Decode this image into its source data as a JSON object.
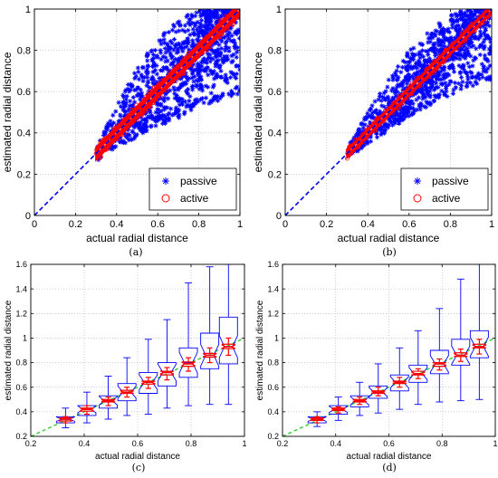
{
  "panels": [
    {
      "caption": "(a)"
    },
    {
      "caption": "(b)"
    },
    {
      "caption": "(c)"
    },
    {
      "caption": "(d)"
    }
  ],
  "chart_data": [
    {
      "type": "scatter",
      "title": "",
      "xlabel": "actual radial distance",
      "ylabel": "estimated radial distance",
      "xlim": [
        0,
        1
      ],
      "ylim": [
        0,
        1
      ],
      "xticks": [
        "0",
        "0.2",
        "0.4",
        "0.6",
        "0.8",
        "1"
      ],
      "yticks": [
        "0",
        "0.2",
        "0.4",
        "0.6",
        "0.8",
        "1"
      ],
      "grid": true,
      "legend": "bottom-right",
      "reference_line": {
        "x": [
          0,
          1
        ],
        "y": [
          0,
          1
        ],
        "style": "dashed",
        "color": "#0000ee"
      },
      "series": [
        {
          "name": "passive",
          "marker": "*",
          "color": "#0000ff",
          "x_range": [
            0.3,
            1.0
          ],
          "lower_edge": [
            [
              0.3,
              0.26
            ],
            [
              0.4,
              0.33
            ],
            [
              0.5,
              0.38
            ],
            [
              0.6,
              0.43
            ],
            [
              0.7,
              0.47
            ],
            [
              0.8,
              0.52
            ],
            [
              0.9,
              0.55
            ],
            [
              1.0,
              0.58
            ]
          ],
          "upper_edge": [
            [
              0.3,
              0.34
            ],
            [
              0.4,
              0.53
            ],
            [
              0.5,
              0.72
            ],
            [
              0.6,
              0.85
            ],
            [
              0.7,
              0.95
            ],
            [
              0.8,
              1.0
            ],
            [
              0.9,
              1.0
            ],
            [
              1.0,
              1.0
            ]
          ]
        },
        {
          "name": "active",
          "marker": "o",
          "color": "#ff0000",
          "x_range": [
            0.3,
            1.0
          ],
          "band_halfwidth": 0.03
        }
      ]
    },
    {
      "type": "scatter",
      "title": "",
      "xlabel": "actual radial distance",
      "ylabel": "estimated radial distance",
      "xlim": [
        0,
        1
      ],
      "ylim": [
        0,
        1
      ],
      "xticks": [
        "0",
        "0.2",
        "0.4",
        "0.6",
        "0.8",
        "1"
      ],
      "yticks": [
        "0",
        "0.2",
        "0.4",
        "0.6",
        "0.8",
        "1"
      ],
      "grid": true,
      "legend": "bottom-right",
      "reference_line": {
        "x": [
          0,
          1
        ],
        "y": [
          0,
          1
        ],
        "style": "dashed",
        "color": "#0000ee"
      },
      "series": [
        {
          "name": "passive",
          "marker": "*",
          "color": "#0000ff",
          "x_range": [
            0.3,
            1.0
          ],
          "lower_edge": [
            [
              0.3,
              0.27
            ],
            [
              0.4,
              0.35
            ],
            [
              0.5,
              0.41
            ],
            [
              0.6,
              0.48
            ],
            [
              0.7,
              0.53
            ],
            [
              0.8,
              0.58
            ],
            [
              0.9,
              0.62
            ],
            [
              1.0,
              0.66
            ]
          ],
          "upper_edge": [
            [
              0.3,
              0.33
            ],
            [
              0.4,
              0.5
            ],
            [
              0.5,
              0.66
            ],
            [
              0.6,
              0.8
            ],
            [
              0.7,
              0.9
            ],
            [
              0.8,
              0.98
            ],
            [
              0.9,
              1.0
            ],
            [
              1.0,
              1.0
            ]
          ]
        },
        {
          "name": "active",
          "marker": "o",
          "color": "#ff0000",
          "x_range": [
            0.3,
            1.0
          ],
          "band_halfwidth": 0.02
        }
      ]
    },
    {
      "type": "box",
      "title": "",
      "xlabel": "actual radial distance",
      "ylabel": "estimated radial distance",
      "xlim": [
        0.2,
        1
      ],
      "ylim": [
        0.2,
        1.6
      ],
      "xticks": [
        "0.2",
        "0.4",
        "0.6",
        "0.8",
        "1"
      ],
      "yticks": [
        "0.2",
        "0.4",
        "0.6",
        "0.8",
        "1",
        "1.2",
        "1.4",
        "1.6"
      ],
      "grid": true,
      "reference_line": {
        "x": [
          0.2,
          1
        ],
        "y": [
          0.2,
          1
        ],
        "style": "dashed",
        "color": "#33cc33"
      },
      "series": [
        {
          "name": "passive",
          "color": "#0000ff",
          "x": [
            0.33,
            0.41,
            0.49,
            0.56,
            0.64,
            0.71,
            0.79,
            0.87,
            0.94
          ],
          "whisker_low": [
            0.27,
            0.31,
            0.34,
            0.37,
            0.38,
            0.43,
            0.45,
            0.46,
            0.46
          ],
          "q1": [
            0.31,
            0.37,
            0.43,
            0.49,
            0.55,
            0.61,
            0.68,
            0.75,
            0.79
          ],
          "median": [
            0.34,
            0.42,
            0.49,
            0.56,
            0.64,
            0.72,
            0.8,
            0.86,
            0.93
          ],
          "q3": [
            0.36,
            0.45,
            0.53,
            0.63,
            0.72,
            0.8,
            0.92,
            1.04,
            1.17
          ],
          "whisker_high": [
            0.43,
            0.56,
            0.69,
            0.84,
            0.99,
            1.15,
            1.45,
            1.58,
            1.6
          ]
        },
        {
          "name": "active",
          "color": "#ff0000",
          "x": [
            0.33,
            0.41,
            0.49,
            0.56,
            0.64,
            0.71,
            0.79,
            0.87,
            0.94
          ],
          "whisker_low": [
            0.31,
            0.38,
            0.45,
            0.52,
            0.59,
            0.66,
            0.73,
            0.8,
            0.86
          ],
          "q1": [
            0.325,
            0.405,
            0.48,
            0.55,
            0.625,
            0.7,
            0.77,
            0.845,
            0.915
          ],
          "median": [
            0.34,
            0.42,
            0.49,
            0.56,
            0.64,
            0.72,
            0.79,
            0.86,
            0.93
          ],
          "q3": [
            0.35,
            0.43,
            0.5,
            0.575,
            0.65,
            0.73,
            0.805,
            0.875,
            0.95
          ],
          "whisker_high": [
            0.36,
            0.45,
            0.52,
            0.6,
            0.68,
            0.76,
            0.84,
            0.92,
            1.0
          ]
        }
      ]
    },
    {
      "type": "box",
      "title": "",
      "xlabel": "actual radial distance",
      "ylabel": "estimated radial distance",
      "xlim": [
        0.2,
        1
      ],
      "ylim": [
        0.2,
        1.6
      ],
      "xticks": [
        "0.2",
        "0.4",
        "0.6",
        "0.8",
        "1"
      ],
      "yticks": [
        "0.2",
        "0.4",
        "0.6",
        "0.8",
        "1",
        "1.2",
        "1.4",
        "1.6"
      ],
      "grid": true,
      "reference_line": {
        "x": [
          0.2,
          1
        ],
        "y": [
          0.2,
          1
        ],
        "style": "dashed",
        "color": "#33cc33"
      },
      "series": [
        {
          "name": "passive",
          "color": "#0000ff",
          "x": [
            0.33,
            0.41,
            0.49,
            0.56,
            0.64,
            0.71,
            0.79,
            0.87,
            0.94
          ],
          "whisker_low": [
            0.28,
            0.33,
            0.37,
            0.39,
            0.42,
            0.46,
            0.48,
            0.49,
            0.5
          ],
          "q1": [
            0.31,
            0.38,
            0.44,
            0.51,
            0.57,
            0.64,
            0.71,
            0.78,
            0.84
          ],
          "median": [
            0.34,
            0.42,
            0.49,
            0.56,
            0.64,
            0.71,
            0.79,
            0.86,
            0.93
          ],
          "q3": [
            0.36,
            0.45,
            0.53,
            0.61,
            0.7,
            0.78,
            0.9,
            0.99,
            1.06
          ],
          "whisker_high": [
            0.4,
            0.52,
            0.64,
            0.79,
            0.92,
            1.06,
            1.24,
            1.48,
            1.6
          ]
        },
        {
          "name": "active",
          "color": "#ff0000",
          "x": [
            0.33,
            0.41,
            0.49,
            0.56,
            0.64,
            0.71,
            0.79,
            0.87,
            0.94
          ],
          "whisker_low": [
            0.31,
            0.39,
            0.46,
            0.53,
            0.6,
            0.67,
            0.74,
            0.81,
            0.87
          ],
          "q1": [
            0.33,
            0.41,
            0.48,
            0.55,
            0.63,
            0.7,
            0.77,
            0.85,
            0.92
          ],
          "median": [
            0.34,
            0.42,
            0.49,
            0.56,
            0.64,
            0.71,
            0.79,
            0.86,
            0.93
          ],
          "q3": [
            0.35,
            0.43,
            0.5,
            0.57,
            0.65,
            0.73,
            0.8,
            0.88,
            0.95
          ],
          "whisker_high": [
            0.36,
            0.44,
            0.52,
            0.6,
            0.68,
            0.75,
            0.83,
            0.91,
            0.99
          ]
        }
      ]
    }
  ]
}
